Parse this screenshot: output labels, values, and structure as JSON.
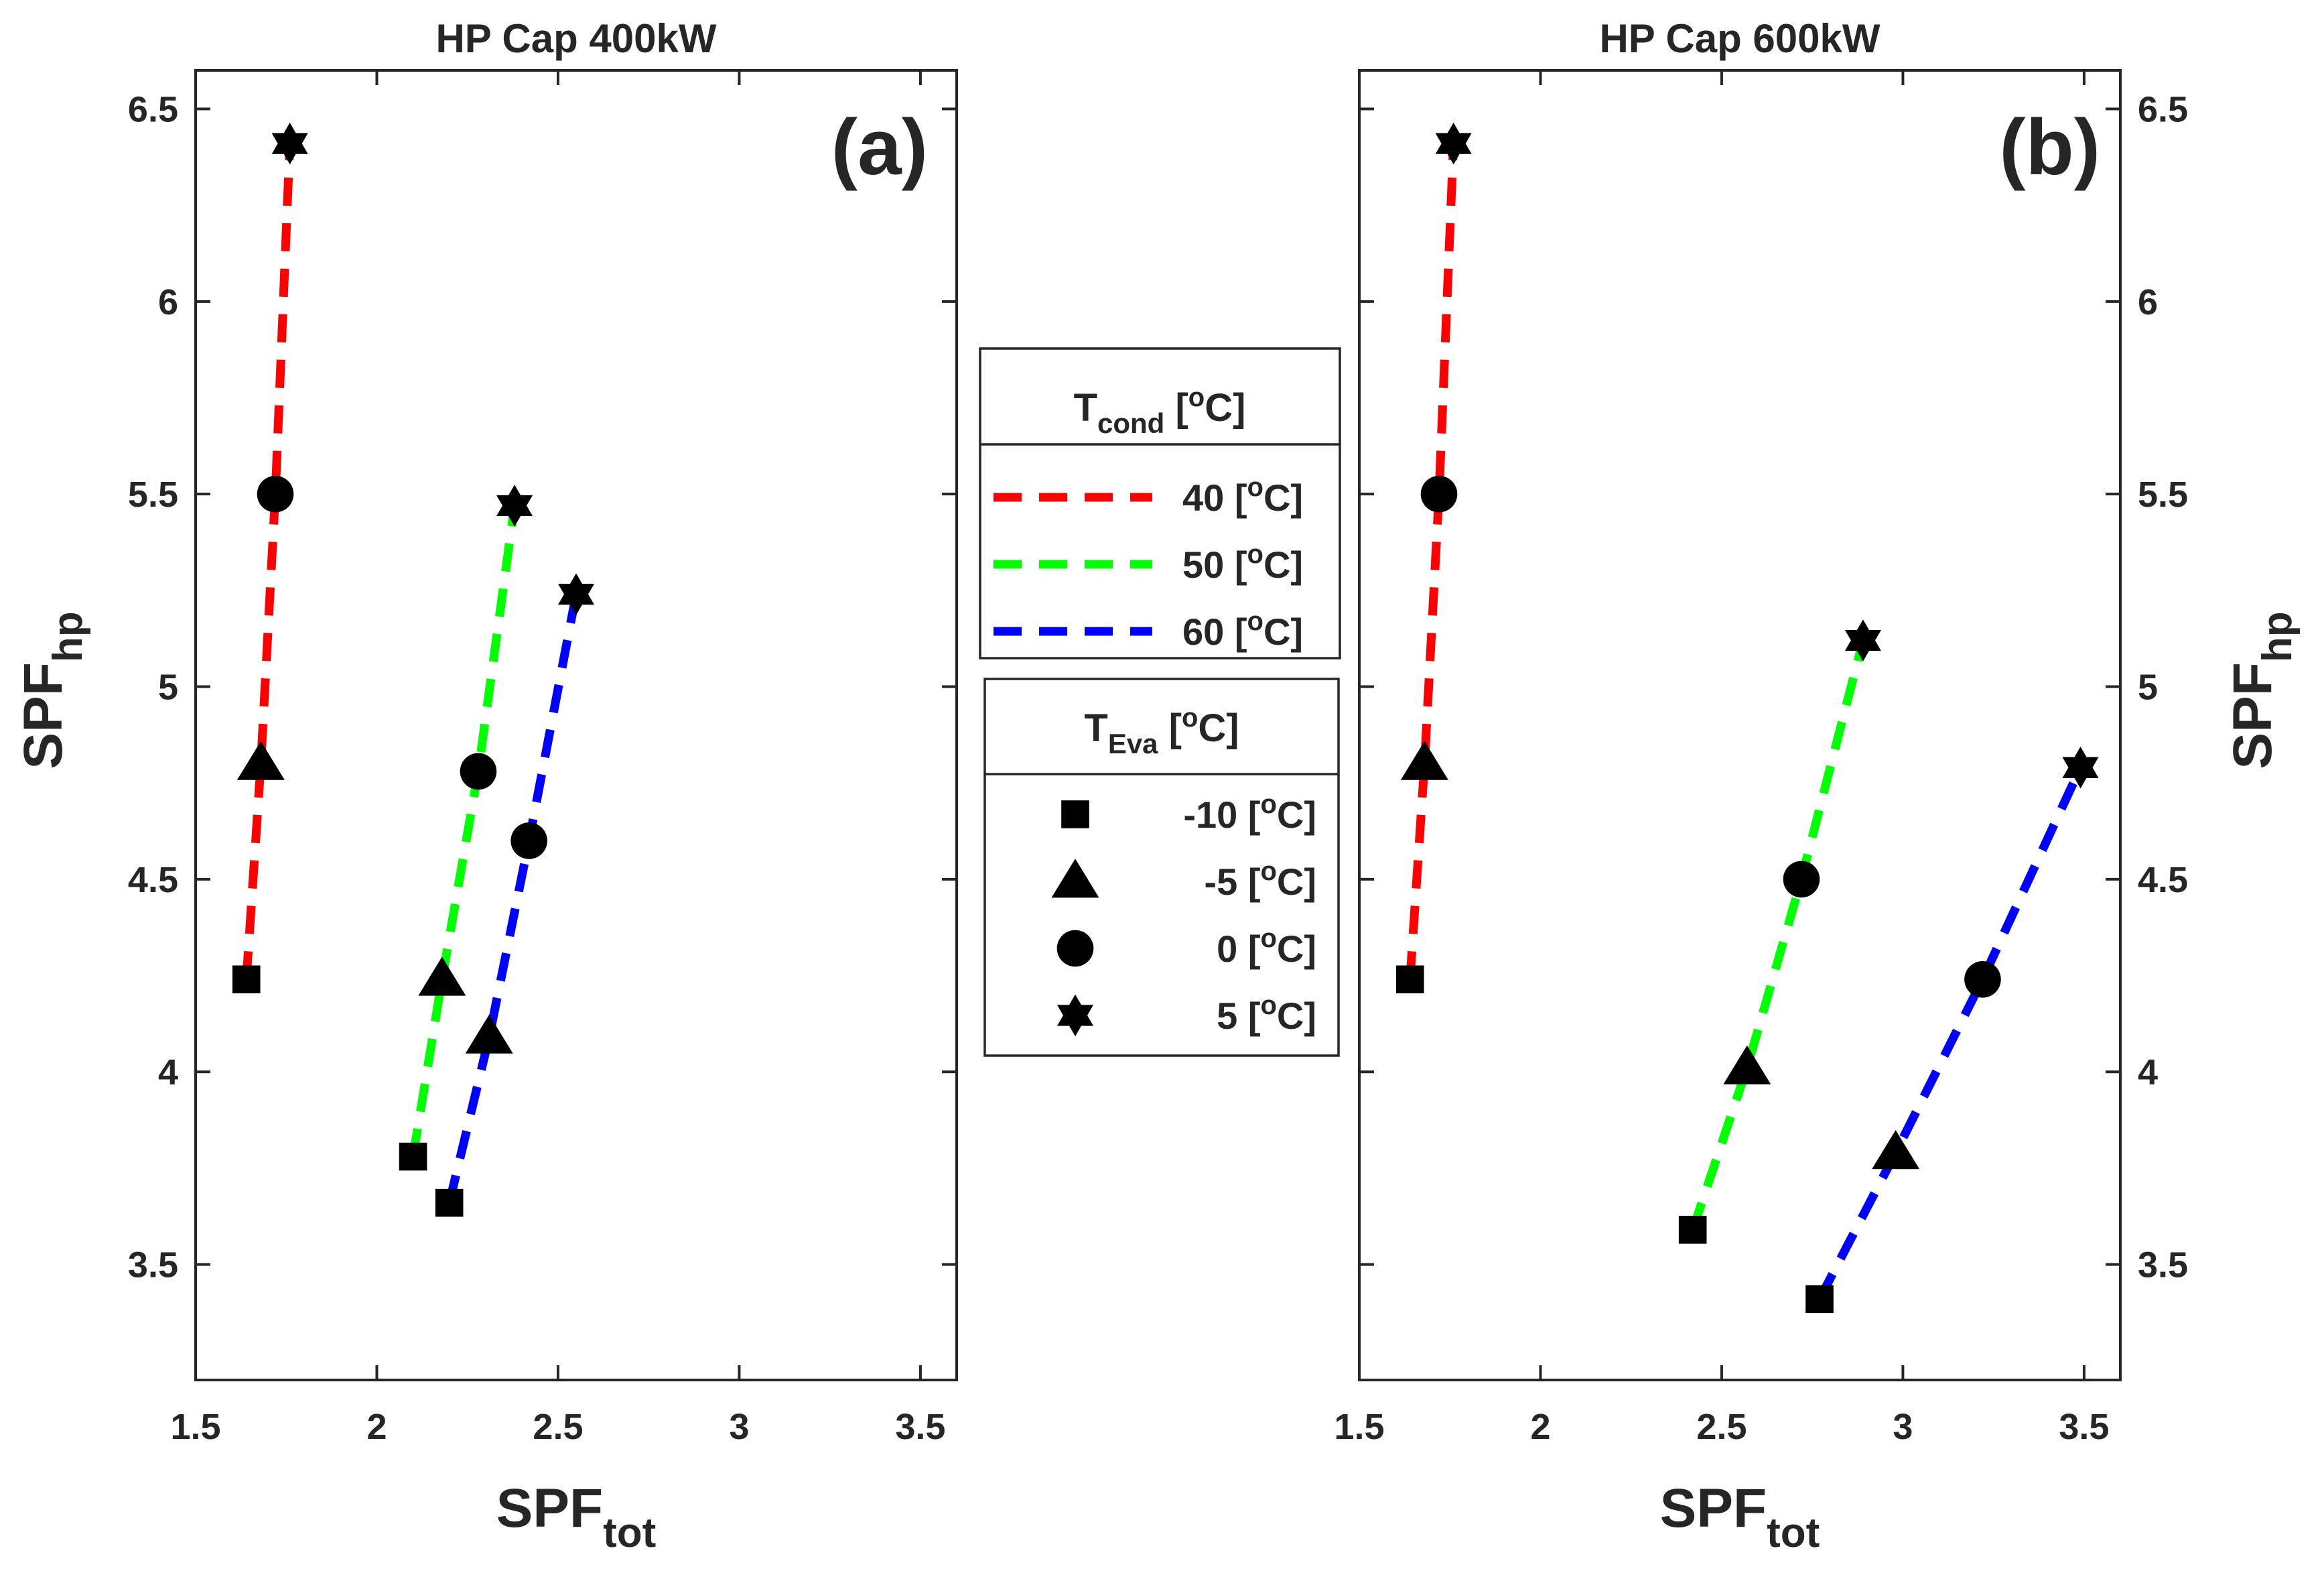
{
  "chart_data": [
    {
      "type": "line",
      "panel_label": "(a)",
      "title": "HP Cap 400kW",
      "xlabel": "SPF",
      "xlabel_sub": "tot",
      "ylabel": "SPF",
      "ylabel_sub": "hp",
      "xlim": [
        1.5,
        3.6
      ],
      "ylim": [
        3.2,
        6.6
      ],
      "xticks": [
        1.5,
        2,
        2.5,
        3,
        3.5
      ],
      "xtick_labels": [
        "1.5",
        "2",
        "2.5",
        "3",
        "3.5"
      ],
      "yticks": [
        3.5,
        4,
        4.5,
        5,
        5.5,
        6,
        6.5
      ],
      "ytick_labels": [
        "3.5",
        "4",
        "4.5",
        "5",
        "5.5",
        "6",
        "6.5"
      ],
      "series": [
        {
          "name": "40 [oC]",
          "color": "#ff0000",
          "x": [
            1.64,
            1.68,
            1.72,
            1.76
          ],
          "y": [
            4.24,
            4.8,
            5.5,
            6.41
          ]
        },
        {
          "name": "50 [oC]",
          "color": "#00ff00",
          "x": [
            2.1,
            2.18,
            2.28,
            2.38
          ],
          "y": [
            3.78,
            4.24,
            4.78,
            5.47
          ]
        },
        {
          "name": "60 [oC]",
          "color": "#0000ff",
          "x": [
            2.2,
            2.31,
            2.42,
            2.55
          ],
          "y": [
            3.66,
            4.09,
            4.6,
            5.24
          ]
        }
      ]
    },
    {
      "type": "line",
      "panel_label": "(b)",
      "title": "HP Cap 600kW",
      "xlabel": "SPF",
      "xlabel_sub": "tot",
      "ylabel": "SPF",
      "ylabel_sub": "hp",
      "xlim": [
        1.5,
        3.6
      ],
      "ylim": [
        3.2,
        6.6
      ],
      "xticks": [
        1.5,
        2,
        2.5,
        3,
        3.5
      ],
      "xtick_labels": [
        "1.5",
        "2",
        "2.5",
        "3",
        "3.5"
      ],
      "yticks": [
        3.5,
        4,
        4.5,
        5,
        5.5,
        6,
        6.5
      ],
      "ytick_labels": [
        "3.5",
        "4",
        "4.5",
        "5",
        "5.5",
        "6",
        "6.5"
      ],
      "series": [
        {
          "name": "40 [oC]",
          "color": "#ff0000",
          "x": [
            1.64,
            1.68,
            1.72,
            1.76
          ],
          "y": [
            4.24,
            4.8,
            5.5,
            6.41
          ]
        },
        {
          "name": "50 [oC]",
          "color": "#00ff00",
          "x": [
            2.42,
            2.57,
            2.72,
            2.89
          ],
          "y": [
            3.59,
            4.01,
            4.5,
            5.12
          ]
        },
        {
          "name": "60 [oC]",
          "color": "#0000ff",
          "x": [
            2.77,
            2.98,
            3.22,
            3.49
          ],
          "y": [
            3.41,
            3.79,
            4.24,
            4.79
          ]
        }
      ]
    }
  ],
  "marker_order": [
    "square",
    "triangle",
    "circle",
    "hexagram"
  ],
  "legend_cond": {
    "title": "T",
    "title_sub": "cond",
    "title_unit_pre": " [",
    "title_unit_sup": "o",
    "title_unit_post": "C]",
    "items": [
      {
        "value": "40",
        "unit_pre": " [",
        "sup": "o",
        "unit_post": "C]",
        "color": "#ff0000"
      },
      {
        "value": "50",
        "unit_pre": " [",
        "sup": "o",
        "unit_post": "C]",
        "color": "#00ff00"
      },
      {
        "value": "60",
        "unit_pre": " [",
        "sup": "o",
        "unit_post": "C]",
        "color": "#0000ff"
      }
    ]
  },
  "legend_eva": {
    "title": "T",
    "title_sub": "Eva",
    "title_unit_pre": " [",
    "title_unit_sup": "o",
    "title_unit_post": "C]",
    "items": [
      {
        "value": "-10",
        "unit_pre": " [",
        "sup": "o",
        "unit_post": "C]",
        "marker": "square"
      },
      {
        "value": "-5",
        "unit_pre": " [",
        "sup": "o",
        "unit_post": "C]",
        "marker": "triangle"
      },
      {
        "value": "0",
        "unit_pre": " [",
        "sup": "o",
        "unit_post": "C]",
        "marker": "circle"
      },
      {
        "value": "5",
        "unit_pre": " [",
        "sup": "o",
        "unit_post": "C]",
        "marker": "hexagram"
      }
    ]
  }
}
